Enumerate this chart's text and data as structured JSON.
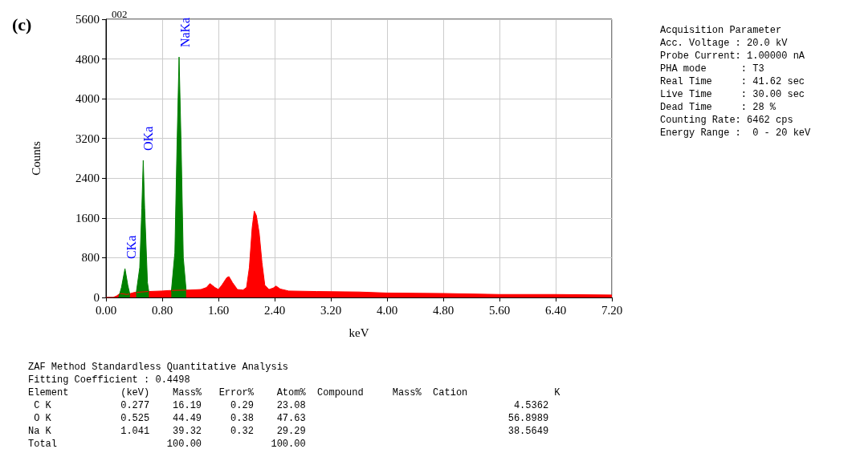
{
  "chart_data": {
    "type": "area",
    "title": "(c)",
    "subtitle": "002",
    "xlabel": "keV",
    "ylabel": "Counts",
    "xlim": [
      0,
      7.2
    ],
    "xticks": [
      {
        "value": 0,
        "label": "0.00"
      },
      {
        "value": 0.8,
        "label": "0.80"
      },
      {
        "value": 1.6,
        "label": "1.60"
      },
      {
        "value": 2.4,
        "label": "2.40"
      },
      {
        "value": 3.2,
        "label": "3.20"
      },
      {
        "value": 4.0,
        "label": "4.00"
      },
      {
        "value": 4.8,
        "label": "4.80"
      },
      {
        "value": 5.6,
        "label": "5.60"
      },
      {
        "value": 6.4,
        "label": "6.40"
      },
      {
        "value": 7.2,
        "label": "7.20"
      }
    ],
    "ylim": [
      0,
      5600
    ],
    "yticks": [
      0,
      800,
      1600,
      2400,
      3200,
      4000,
      4800,
      5600
    ],
    "grid": true,
    "marker": "none",
    "line_style": "solid",
    "series": [
      {
        "color": "#ff0000",
        "x": [
          0,
          0.1,
          0.15,
          0.2,
          0.3,
          0.4,
          0.6,
          0.8,
          0.9,
          1.2,
          1.35,
          1.43,
          1.48,
          1.55,
          1.6,
          1.65,
          1.72,
          1.75,
          1.8,
          1.87,
          1.95,
          2.0,
          2.04,
          2.08,
          2.11,
          2.14,
          2.18,
          2.22,
          2.26,
          2.32,
          2.38,
          2.42,
          2.48,
          2.6,
          3.0,
          3.6,
          4.0,
          4.8,
          5.6,
          6.4,
          7.2
        ],
        "values": [
          0,
          0,
          30,
          80,
          60,
          100,
          120,
          130,
          140,
          150,
          160,
          200,
          280,
          200,
          160,
          250,
          400,
          420,
          300,
          160,
          150,
          200,
          600,
          1400,
          1740,
          1650,
          1300,
          700,
          250,
          160,
          190,
          230,
          170,
          130,
          120,
          110,
          90,
          80,
          60,
          60,
          50
        ]
      },
      {
        "color": "#008000",
        "x": [
          0.18,
          0.22,
          0.27,
          0.31,
          0.34,
          0.38,
          0.43,
          0.48,
          0.51,
          0.53,
          0.55,
          0.59,
          0.61,
          0.8,
          0.93,
          0.98,
          1.01,
          1.04,
          1.07,
          1.1,
          1.14
        ],
        "values": [
          0,
          200,
          580,
          250,
          60,
          null,
          90,
          600,
          1800,
          2760,
          1800,
          300,
          110,
          null,
          120,
          900,
          3000,
          4840,
          3000,
          800,
          150
        ]
      }
    ],
    "annotations": [
      {
        "text": "CKa",
        "x": 0.277,
        "y": 580
      },
      {
        "text": "OKa",
        "x": 0.525,
        "y": 2760
      },
      {
        "text": "NaKa",
        "x": 1.041,
        "y": 4840
      },
      "Acquisition Parameter\nAcc. Voltage : 20.0 kV\nProbe Current: 1.00000 nA\nPHA mode      : T3\nReal Time     : 41.62 sec\nLive Time     : 30.00 sec\nDead Time     : 28 %\nCounting Rate: 6462 cps\nEnergy Range :  0 - 20 keV",
      "ZAF Method Standardless Quantitative Analysis\nFitting Coefficient : 0.4498\nElement         (keV)    Mass%   Error%    Atom%  Compound     Mass%  Cation               K\n C K            0.277    16.19     0.29    23.08                                    4.5362\n O K            0.525    44.49     0.38    47.63                                   56.8989\nNa K            1.041    39.32     0.32    29.29                                   38.5649\nTotal                   100.00            100.00"
    ]
  }
}
